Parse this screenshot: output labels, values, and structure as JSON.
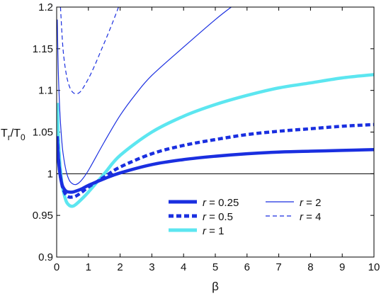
{
  "chart_data": {
    "type": "line",
    "xlabel": "β",
    "ylabel": {
      "base1": "T",
      "sub1": "r",
      "slash": "/T",
      "sub2": "0"
    },
    "xlim": [
      0,
      10
    ],
    "ylim": [
      0.9,
      1.2
    ],
    "xticks": [
      "0",
      "1",
      "2",
      "3",
      "4",
      "5",
      "6",
      "7",
      "8",
      "9",
      "10"
    ],
    "yticks": [
      "0.9",
      "0.95",
      "1",
      "1.05",
      "1.1",
      "1.15",
      "1.2"
    ],
    "reference_line": {
      "y": 1
    },
    "legend_position": "lower-right",
    "series": [
      {
        "name": "r = 0.25",
        "r_label": "r",
        "value_label": " = 0.25",
        "color": "#1a2fe0",
        "style": "solid-thick",
        "x": [
          0.02,
          0.05,
          0.1,
          0.15,
          0.2,
          0.3,
          0.4,
          0.5,
          0.6,
          0.8,
          1,
          1.5,
          2,
          3,
          4,
          5,
          6,
          7,
          8,
          9,
          10
        ],
        "y": [
          1.041,
          1.02,
          1.001,
          0.99,
          0.984,
          0.979,
          0.978,
          0.978,
          0.979,
          0.982,
          0.986,
          0.994,
          1.001,
          1.011,
          1.017,
          1.021,
          1.024,
          1.026,
          1.027,
          1.028,
          1.029
        ]
      },
      {
        "name": "r = 0.5",
        "r_label": "r",
        "value_label": " = 0.5",
        "color": "#1a2fe0",
        "style": "dashed-thick",
        "x": [
          0.02,
          0.05,
          0.1,
          0.15,
          0.2,
          0.3,
          0.4,
          0.5,
          0.6,
          0.8,
          1,
          1.5,
          2,
          3,
          4,
          5,
          6,
          7,
          8,
          9,
          10
        ],
        "y": [
          1.045,
          1.022,
          1.002,
          0.99,
          0.982,
          0.974,
          0.972,
          0.972,
          0.973,
          0.978,
          0.984,
          0.996,
          1.008,
          1.024,
          1.034,
          1.041,
          1.047,
          1.051,
          1.054,
          1.057,
          1.059
        ]
      },
      {
        "name": "r = 1",
        "r_label": "r",
        "value_label": " = 1",
        "color": "#5ce6f0",
        "style": "solid-thick",
        "x": [
          0.02,
          0.05,
          0.1,
          0.15,
          0.2,
          0.3,
          0.4,
          0.5,
          0.6,
          0.8,
          1,
          1.5,
          2,
          3,
          4,
          5,
          6,
          7,
          8,
          9,
          10
        ],
        "y": [
          1.085,
          1.045,
          1.012,
          0.993,
          0.981,
          0.967,
          0.962,
          0.961,
          0.963,
          0.97,
          0.978,
          1.0,
          1.022,
          1.05,
          1.069,
          1.083,
          1.094,
          1.103,
          1.109,
          1.115,
          1.119
        ]
      },
      {
        "name": "r = 2",
        "r_label": "r",
        "value_label": " = 2",
        "color": "#1a2fe0",
        "style": "solid-thin",
        "x": [
          0.02,
          0.05,
          0.1,
          0.15,
          0.2,
          0.3,
          0.4,
          0.5,
          0.6,
          0.7,
          0.8,
          1,
          1.5,
          2,
          2.5,
          3,
          4,
          5,
          5.5
        ],
        "y": [
          1.185,
          1.125,
          1.075,
          1.045,
          1.025,
          1.003,
          0.992,
          0.988,
          0.987,
          0.989,
          0.993,
          1.004,
          1.038,
          1.07,
          1.096,
          1.118,
          1.152,
          1.185,
          1.2
        ]
      },
      {
        "name": "r = 4",
        "r_label": "r",
        "value_label": " = 4",
        "color": "#1a2fe0",
        "style": "dashed-thin",
        "x": [
          0.12,
          0.2,
          0.3,
          0.4,
          0.5,
          0.6,
          0.7,
          0.8,
          1,
          1.2,
          1.4,
          1.6,
          1.8,
          1.95
        ],
        "y": [
          1.2,
          1.15,
          1.12,
          1.105,
          1.098,
          1.096,
          1.097,
          1.101,
          1.114,
          1.13,
          1.148,
          1.166,
          1.185,
          1.2
        ]
      }
    ]
  }
}
